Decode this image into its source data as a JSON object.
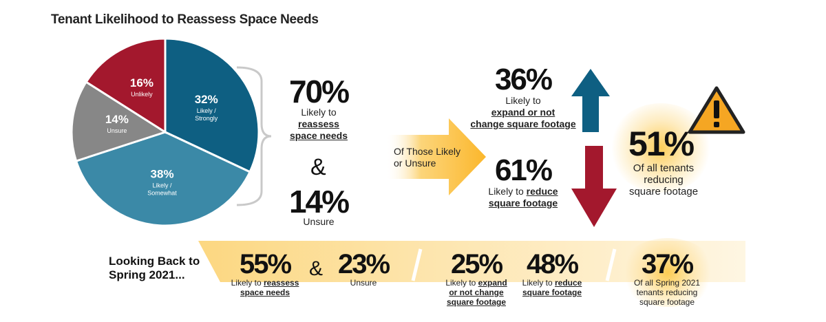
{
  "title": "Tenant Likelihood to Reassess Space Needs",
  "chart_data": {
    "type": "pie",
    "categories": [
      "Likely / Strongly",
      "Likely / Somewhat",
      "Unsure",
      "Unlikely"
    ],
    "values": [
      32,
      38,
      14,
      16
    ],
    "labels": [
      {
        "pct": "32%",
        "line1": "Likely /",
        "line2": "Strongly"
      },
      {
        "pct": "38%",
        "line1": "Likely /",
        "line2": "Somewhat"
      },
      {
        "pct": "14%",
        "line1": "Unsure",
        "line2": ""
      },
      {
        "pct": "16%",
        "line1": "Unlikely",
        "line2": ""
      }
    ],
    "colors": [
      "#0e5f82",
      "#3b89a7",
      "#878787",
      "#a3182d"
    ]
  },
  "summary": {
    "likely_pct": "70%",
    "likely_l1": "Likely to",
    "likely_l2": "reassess",
    "likely_l3": "space needs",
    "amp": "&",
    "unsure_pct": "14%",
    "unsure_label": "Unsure"
  },
  "arrow": {
    "line1": "Of Those Likely",
    "line2": "or Unsure"
  },
  "expand": {
    "pct": "36%",
    "l1": "Likely to",
    "l2": "expand or not",
    "l3": "change square footage"
  },
  "reduce": {
    "pct": "61%",
    "l1a": "Likely to ",
    "l1b": "reduce",
    "l2": "square footage"
  },
  "all_tenants": {
    "pct": "51%",
    "l1": "Of all tenants",
    "l2": "reducing",
    "l3": "square footage"
  },
  "spring": {
    "heading_l1": "Looking Back to",
    "heading_l2": "Spring 2021...",
    "reassess_pct": "55%",
    "reassess_l1a": "Likely to ",
    "reassess_l1b": "reassess",
    "reassess_l2": "space needs",
    "amp": "&",
    "unsure_pct": "23%",
    "unsure_label": "Unsure",
    "expand_pct": "25%",
    "expand_l1a": "Likely to ",
    "expand_l1b": "expand",
    "expand_l2": "or not change",
    "expand_l3": "square footage",
    "reduce_pct": "48%",
    "reduce_l1a": "Likely to ",
    "reduce_l1b": "reduce",
    "reduce_l2": "square footage",
    "all_pct": "37%",
    "all_l1": "Of all Spring 2021",
    "all_l2": "tenants reducing",
    "all_l3": "square footage"
  },
  "colors": {
    "up_arrow": "#0e5f82",
    "down_arrow": "#a3182d",
    "accent_yellow": "#fbb72c",
    "warning_yellow": "#f5a623"
  },
  "icons": {
    "warning": "warning-triangle-icon",
    "up": "arrow-up-icon",
    "down": "arrow-down-icon"
  }
}
